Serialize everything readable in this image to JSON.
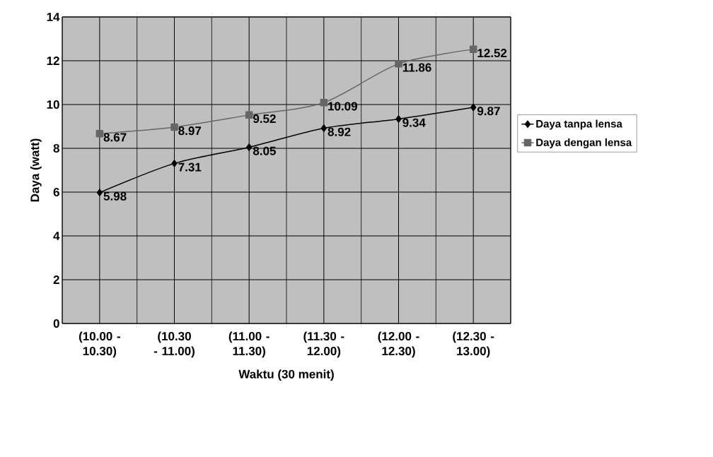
{
  "chart_data": {
    "type": "line",
    "xlabel": "Waktu (30 menit)",
    "ylabel": "Daya (watt)",
    "categories": [
      "(10.00 - 10.30)",
      "(10.30 - 11.00)",
      "(11.00 - 11.30)",
      "(11.30 - 12.00)",
      "(12.00 - 12.30)",
      "(12.30 - 13.00)"
    ],
    "series": [
      {
        "name": "Daya tanpa lensa",
        "color": "#000000",
        "marker": "diamond",
        "values": [
          5.98,
          7.31,
          8.05,
          8.92,
          9.34,
          9.87
        ]
      },
      {
        "name": "Daya dengan lensa",
        "color": "#666666",
        "marker": "square",
        "values": [
          8.67,
          8.97,
          9.52,
          10.09,
          11.86,
          12.52
        ]
      }
    ],
    "ylim": [
      0,
      14
    ],
    "yticks": [
      0,
      2,
      4,
      6,
      8,
      10,
      12,
      14
    ],
    "grid": true,
    "legend": "right",
    "data_labels": true
  }
}
